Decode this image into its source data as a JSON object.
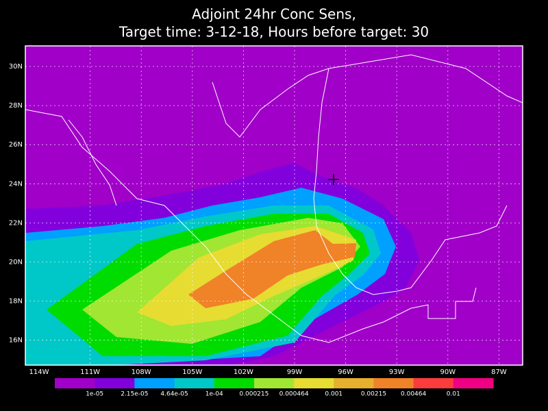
{
  "title": [
    "Adjoint 24hr Conc Sens,",
    "Target time: 3-12-18, Hours before target: 30"
  ],
  "lon_labels": [
    "114W",
    "111W",
    "108W",
    "105W",
    "102W",
    "99W",
    "96W",
    "93W",
    "90W",
    "87W"
  ],
  "lat_labels": [
    "30N",
    "28N",
    "26N",
    "24N",
    "22N",
    "20N",
    "18N",
    "16N"
  ],
  "colorbar": {
    "colors": [
      "#a000c8",
      "#8200dc",
      "#00a0ff",
      "#00c8c8",
      "#00dc00",
      "#a0e632",
      "#e6dc32",
      "#e6af2d",
      "#f08228",
      "#fa3c3c",
      "#f00082"
    ],
    "labels": [
      "1e-05",
      "2.15e-05",
      "4.64e-05",
      "1e-04",
      "0.000215",
      "0.000464",
      "0.001",
      "0.00215",
      "0.00464",
      "0.01"
    ]
  }
}
